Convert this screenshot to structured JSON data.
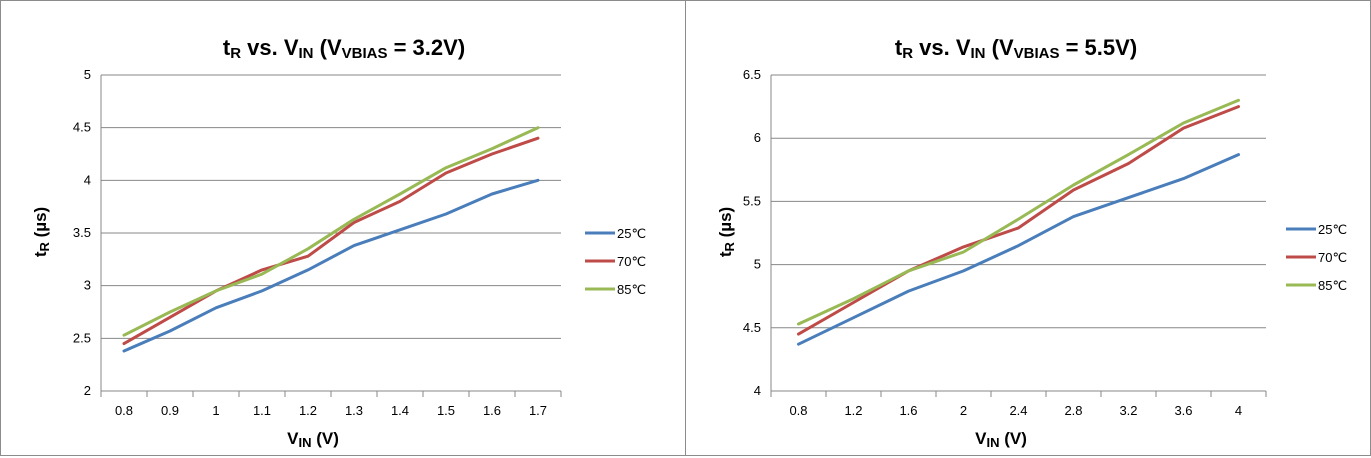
{
  "chart_data": [
    {
      "type": "line",
      "title": {
        "main": "t",
        "sub_main": "R",
        "mid": " vs. V",
        "sub_mid": "IN",
        "open": " (V",
        "sub_bias": "VBIAS",
        "tail": " = 3.2V)"
      },
      "xlabel": {
        "main": "V",
        "sub": "IN",
        "tail": " (V)"
      },
      "ylabel": {
        "main": "t",
        "sub": "R",
        "tail": " (µs)"
      },
      "categories": [
        "0.8",
        "0.9",
        "1",
        "1.1",
        "1.2",
        "1.3",
        "1.4",
        "1.5",
        "1.6",
        "1.7"
      ],
      "ylim": [
        2,
        5
      ],
      "yticks": [
        2,
        2.5,
        3,
        3.5,
        4,
        4.5,
        5
      ],
      "ytick_labels": [
        "2",
        "2.5",
        "3",
        "3.5",
        "4",
        "4.5",
        "5"
      ],
      "grid": true,
      "legend_position": "right",
      "series": [
        {
          "name": "25℃",
          "color": "#4a7ebb",
          "values": [
            2.38,
            2.57,
            2.79,
            2.95,
            3.15,
            3.38,
            3.53,
            3.68,
            3.87,
            4.0
          ]
        },
        {
          "name": "70℃",
          "color": "#be4b48",
          "values": [
            2.45,
            2.7,
            2.95,
            3.15,
            3.28,
            3.6,
            3.8,
            4.07,
            4.25,
            4.4
          ]
        },
        {
          "name": "85℃",
          "color": "#98b954",
          "values": [
            2.53,
            2.75,
            2.95,
            3.11,
            3.35,
            3.63,
            3.87,
            4.12,
            4.3,
            4.5
          ]
        }
      ]
    },
    {
      "type": "line",
      "title": {
        "main": "t",
        "sub_main": "R",
        "mid": " vs. V",
        "sub_mid": "IN",
        "open": " (V",
        "sub_bias": "VBIAS",
        "tail": " = 5.5V)"
      },
      "xlabel": {
        "main": "V",
        "sub": "IN",
        "tail": " (V)"
      },
      "ylabel": {
        "main": "t",
        "sub": "R",
        "tail": " (µs)"
      },
      "categories": [
        "0.8",
        "1.2",
        "1.6",
        "2",
        "2.4",
        "2.8",
        "3.2",
        "3.6",
        "4"
      ],
      "ylim": [
        4,
        6.5
      ],
      "yticks": [
        4,
        4.5,
        5,
        5.5,
        6,
        6.5
      ],
      "ytick_labels": [
        "4",
        "4.5",
        "5",
        "5.5",
        "6",
        "6.5"
      ],
      "grid": true,
      "legend_position": "right",
      "series": [
        {
          "name": "25℃",
          "color": "#4a7ebb",
          "values": [
            4.37,
            4.58,
            4.79,
            4.95,
            5.15,
            5.38,
            5.53,
            5.68,
            5.87
          ]
        },
        {
          "name": "70℃",
          "color": "#be4b48",
          "values": [
            4.45,
            4.7,
            4.95,
            5.14,
            5.29,
            5.59,
            5.8,
            6.08,
            6.25
          ]
        },
        {
          "name": "85℃",
          "color": "#98b954",
          "values": [
            4.53,
            4.73,
            4.95,
            5.1,
            5.36,
            5.63,
            5.87,
            6.12,
            6.3
          ]
        }
      ]
    }
  ]
}
